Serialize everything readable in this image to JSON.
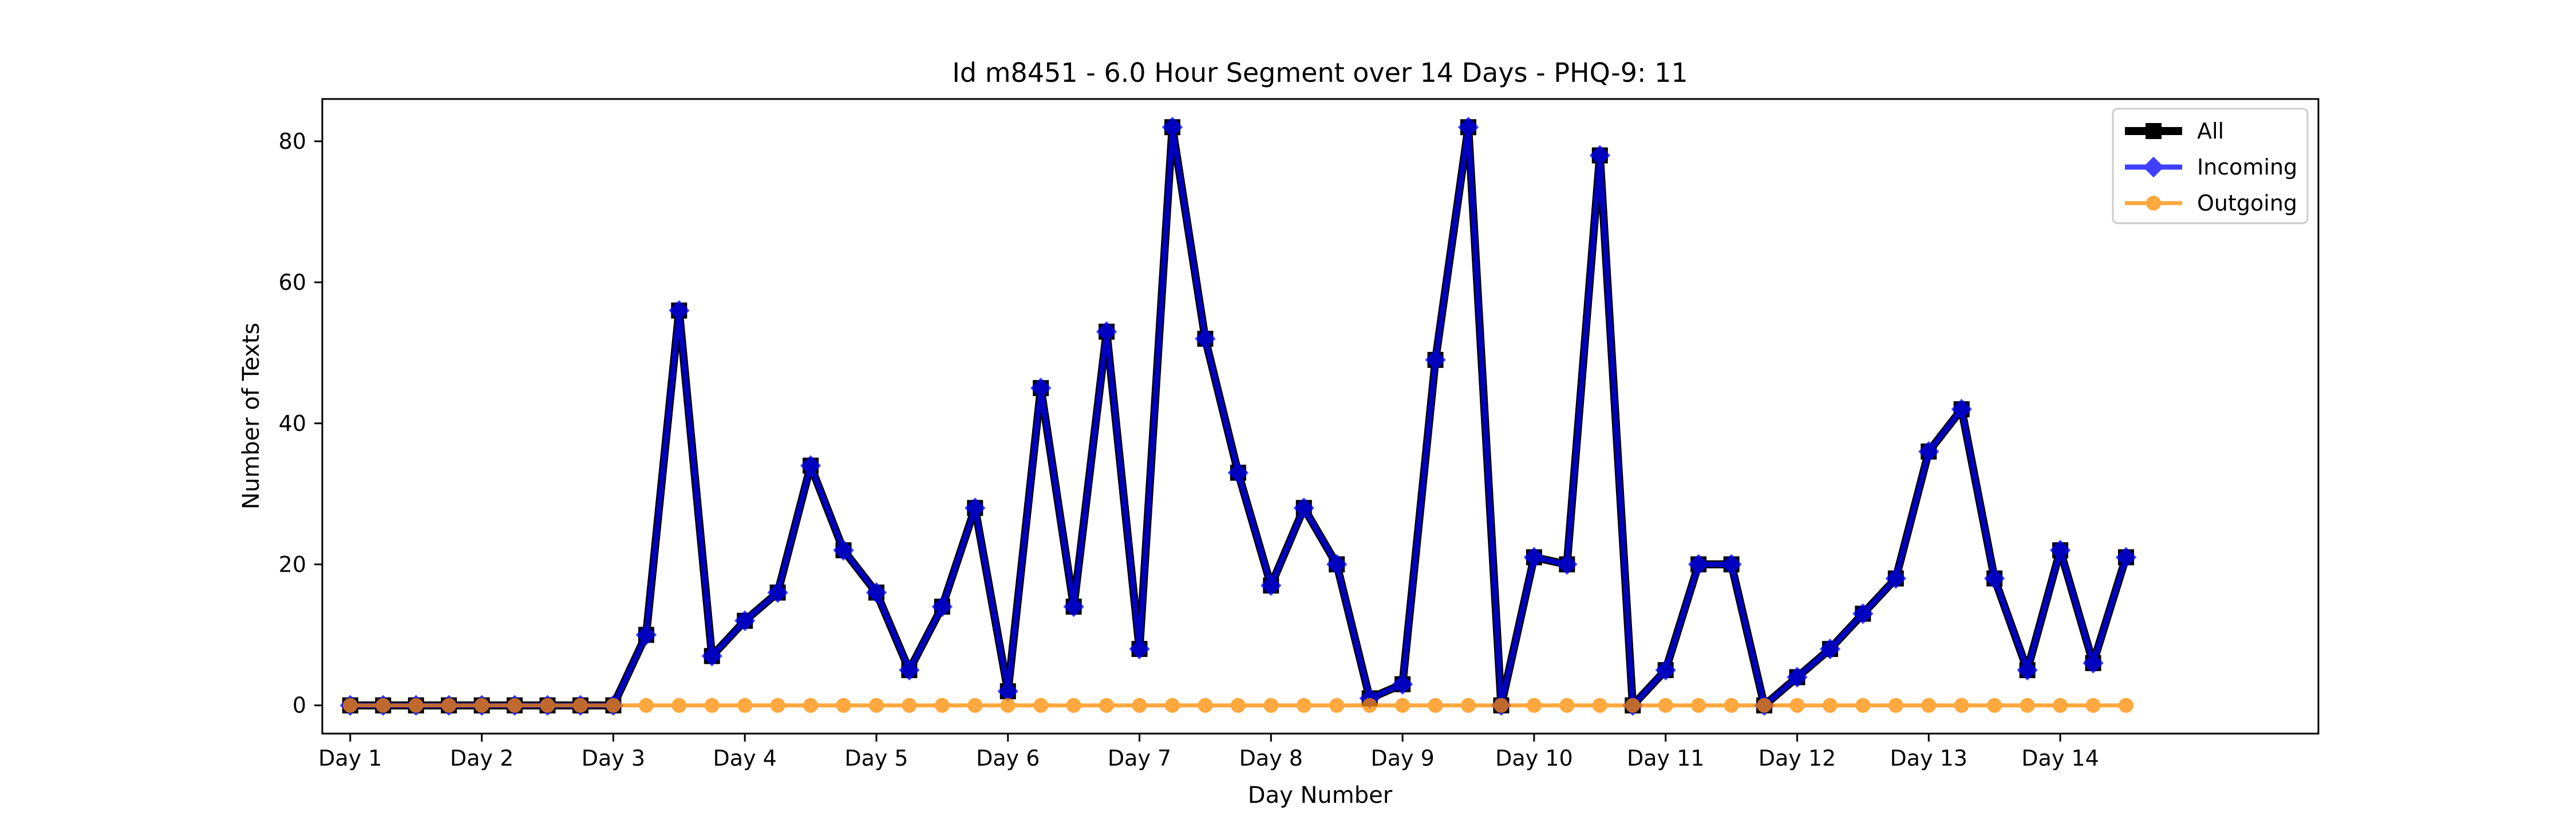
{
  "chart_data": {
    "type": "line",
    "title": "Id m8451 - 6.0 Hour Segment over 14 Days - PHQ-9: 11",
    "xlabel": "Day Number",
    "ylabel": "Number of Texts",
    "xlim": [
      -0.2125,
      14.9625
    ],
    "ylim": [
      -4,
      86
    ],
    "x_tick_labels": [
      "Day 1",
      "Day 2",
      "Day 3",
      "Day 4",
      "Day 5",
      "Day 6",
      "Day 7",
      "Day 8",
      "Day 9",
      "Day 10",
      "Day 11",
      "Day 12",
      "Day 13",
      "Day 14"
    ],
    "y_ticks": [
      0,
      20,
      40,
      60,
      80
    ],
    "legend_position": "top-right",
    "grid": false,
    "series": [
      {
        "name": "All",
        "color": "#000000",
        "marker": "square",
        "values": [
          0,
          0,
          0,
          0,
          0,
          0,
          0,
          0,
          0,
          10,
          56,
          7,
          12,
          16,
          34,
          22,
          16,
          5,
          14,
          28,
          2,
          45,
          14,
          53,
          8,
          82,
          52,
          33,
          17,
          28,
          20,
          1,
          3,
          49,
          82,
          0,
          21,
          20,
          78,
          0,
          5,
          20,
          20,
          0,
          4,
          8,
          13,
          18,
          36,
          42,
          18,
          5,
          22,
          6,
          21
        ]
      },
      {
        "name": "Incoming",
        "color": "#0000ff",
        "marker": "diamond",
        "values": [
          0,
          0,
          0,
          0,
          0,
          0,
          0,
          0,
          0,
          10,
          56,
          7,
          12,
          16,
          34,
          22,
          16,
          5,
          14,
          28,
          2,
          45,
          14,
          53,
          8,
          82,
          52,
          33,
          17,
          28,
          20,
          1,
          3,
          49,
          82,
          0,
          21,
          20,
          78,
          0,
          5,
          20,
          20,
          0,
          4,
          8,
          13,
          18,
          36,
          42,
          18,
          5,
          22,
          6,
          21
        ]
      },
      {
        "name": "Outgoing",
        "color": "#ff8c00",
        "marker": "circle",
        "values": [
          0,
          0,
          0,
          0,
          0,
          0,
          0,
          0,
          0,
          0,
          0,
          0,
          0,
          0,
          0,
          0,
          0,
          0,
          0,
          0,
          0,
          0,
          0,
          0,
          0,
          0,
          0,
          0,
          0,
          0,
          0,
          0,
          0,
          0,
          0,
          0,
          0,
          0,
          0,
          0,
          0,
          0,
          0,
          0,
          0,
          0,
          0,
          0,
          0,
          0,
          0,
          0,
          0,
          0,
          0
        ]
      }
    ]
  }
}
